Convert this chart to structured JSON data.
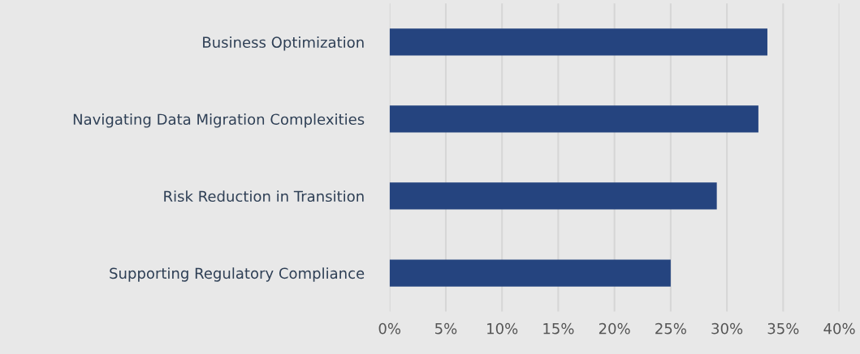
{
  "chart_data": {
    "type": "bar",
    "orientation": "horizontal",
    "categories": [
      "Business Optimization",
      "Navigating Data Migration Complexities",
      "Risk Reduction in Transition",
      "Supporting Regulatory Compliance"
    ],
    "values": [
      33.6,
      32.8,
      29.1,
      25.0
    ],
    "color": "#25447f",
    "xlim": [
      0,
      40
    ],
    "xticks": [
      {
        "value": 0,
        "label": "0%"
      },
      {
        "value": 5,
        "label": "5%"
      },
      {
        "value": 10,
        "label": "10%"
      },
      {
        "value": 15,
        "label": "15%"
      },
      {
        "value": 20,
        "label": "20%"
      },
      {
        "value": 25,
        "label": "25%"
      },
      {
        "value": 30,
        "label": "30%"
      },
      {
        "value": 35,
        "label": "35%"
      },
      {
        "value": 40,
        "label": "40%"
      }
    ],
    "grid": "x"
  }
}
